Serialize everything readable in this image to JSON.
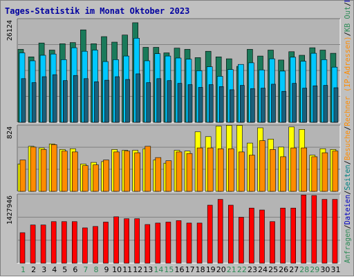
{
  "chart_data": {
    "type": "bar",
    "title": "Tages-Statistik im Monat Oktober 2023",
    "days": [
      "1",
      "2",
      "3",
      "4",
      "5",
      "6",
      "7",
      "8",
      "9",
      "10",
      "11",
      "12",
      "13",
      "14",
      "15",
      "16",
      "17",
      "18",
      "19",
      "20",
      "21",
      "22",
      "23",
      "24",
      "25",
      "26",
      "27",
      "28",
      "29",
      "30",
      "31"
    ],
    "weekend_days": [
      "1",
      "7",
      "8",
      "14",
      "15",
      "21",
      "22",
      "28",
      "29"
    ],
    "colors": {
      "title": "#0000a0",
      "weekday_label": "#000000",
      "weekend_label": "#2e8b57",
      "anfragen": "#1a7a5a",
      "dateien": "#00c8ff",
      "seiten": "#1a5f7a",
      "besuche": "#ff8c00",
      "rechner": "#ffff00",
      "kbf": "#ff0000"
    },
    "panels": [
      {
        "id": "top",
        "ymax_label": "26124",
        "ymax": 26124,
        "series": [
          {
            "key": "anfragen",
            "values": [
              18400,
              16500,
              20000,
              18200,
              19800,
              20100,
              23300,
              19800,
              21600,
              20200,
              22000,
              25100,
              18900,
              18900,
              17500,
              18700,
              18400,
              16300,
              17900,
              16500,
              16000,
              14100,
              18400,
              16700,
              18200,
              15700,
              17800,
              16900,
              18800,
              18200,
              17400
            ]
          },
          {
            "key": "dateien",
            "values": [
              17500,
              15500,
              16900,
              17200,
              15800,
              18800,
              17900,
              18200,
              15300,
              15800,
              16700,
              21200,
              15500,
              17300,
              16700,
              16200,
              15900,
              13000,
              14000,
              11600,
              13300,
              14600,
              15000,
              13200,
              16000,
              12900,
              16400,
              15400,
              17400,
              15800,
              13900
            ]
          },
          {
            "key": "seiten",
            "values": [
              11000,
              10000,
              11500,
              12000,
              10500,
              11800,
              11000,
              10200,
              10600,
              11500,
              10800,
              12200,
              10000,
              11000,
              10500,
              9800,
              9500,
              8800,
              9500,
              9000,
              8200,
              9300,
              8500,
              8600,
              9600,
              7800,
              9800,
              8600,
              9200,
              9300,
              8700
            ]
          }
        ]
      },
      {
        "id": "middle",
        "ymax_label": "824",
        "ymax": 824,
        "series": [
          {
            "key": "rechner",
            "values": [
              340,
              560,
              540,
              590,
              520,
              530,
              340,
              360,
              370,
              520,
              510,
              510,
              530,
              390,
              350,
              510,
              500,
              740,
              680,
              810,
              820,
              820,
              600,
              790,
              650,
              550,
              800,
              770,
              450,
              530,
              520
            ]
          },
          {
            "key": "besuche",
            "values": [
              390,
              550,
              520,
              580,
              500,
              490,
              320,
              330,
              390,
              490,
              500,
              480,
              560,
              420,
              380,
              490,
              470,
              540,
              540,
              530,
              530,
              490,
              450,
              630,
              520,
              430,
              540,
              540,
              430,
              480,
              500
            ]
          }
        ]
      },
      {
        "id": "bottom",
        "ymax_label": "1427946",
        "ymax": 1427946,
        "series": [
          {
            "key": "kbf",
            "values": [
              630000,
              790000,
              790000,
              860000,
              860000,
              860000,
              730000,
              760000,
              850000,
              960000,
              920000,
              920000,
              800000,
              830000,
              850000,
              880000,
              830000,
              830000,
              1200000,
              1320000,
              1200000,
              950000,
              1140000,
              1100000,
              860000,
              1140000,
              1140000,
              1410000,
              1400000,
              1320000,
              1320000
            ]
          }
        ]
      }
    ],
    "legend_right": [
      {
        "text": "Anfragen",
        "color": "#2e8b57"
      },
      {
        "text": "/",
        "color": "#000000"
      },
      {
        "text": "Dateien",
        "color": "#0000c0"
      },
      {
        "text": "/",
        "color": "#000000"
      },
      {
        "text": "Seiten",
        "color": "#008080"
      },
      {
        "text": "/",
        "color": "#000000"
      },
      {
        "text": "Besuche",
        "color": "#ff8c00"
      },
      {
        "text": "/",
        "color": "#000000"
      },
      {
        "text": "Rechner (IP-Adressen)",
        "color": "#ff8c00"
      },
      {
        "text": "/",
        "color": "#000000"
      },
      {
        "text": "KB Out",
        "color": "#2e8b57"
      },
      {
        "text": "/",
        "color": "#000000"
      },
      {
        "text": "KB In",
        "color": "#0000c0"
      },
      {
        "text": "/",
        "color": "#000000"
      },
      {
        "text": "KB F",
        "color": "#ff0000"
      }
    ]
  }
}
